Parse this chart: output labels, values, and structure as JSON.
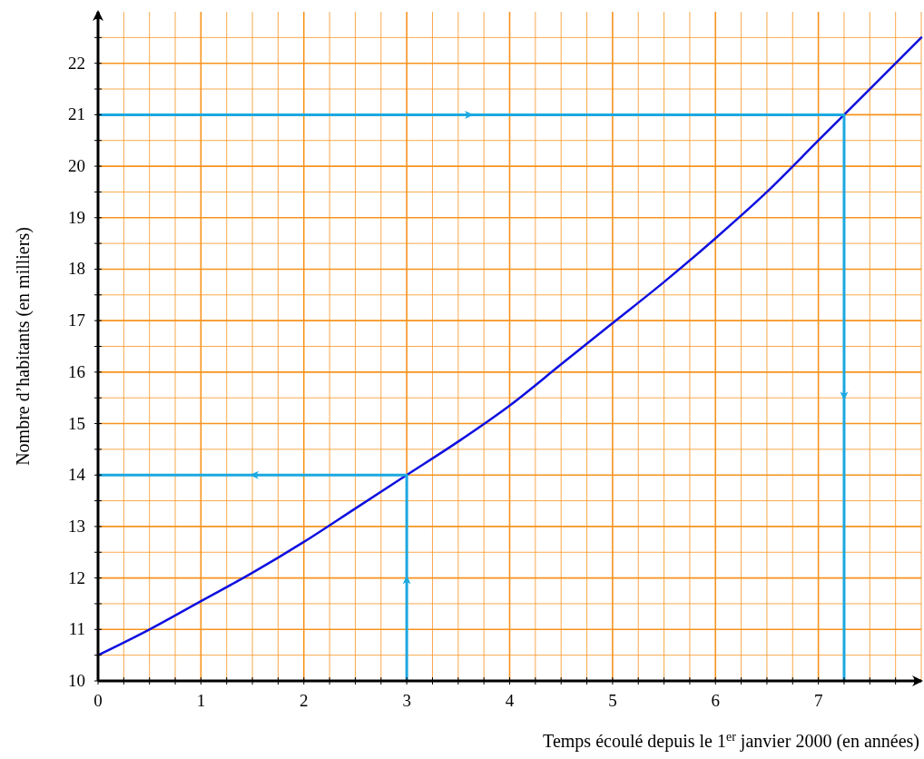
{
  "chart_data": {
    "type": "line",
    "xlabel": "Temps écoulé depuis le 1$^{er}$ janvier 2000 (en années)",
    "ylabel": "Nombre d’habitants (en milliers)",
    "xlim": [
      0,
      8
    ],
    "ylim": [
      10,
      23
    ],
    "xticks": [
      0,
      {
        "value": 0.25,
        "label": null
      },
      {
        "value": 0.5,
        "label": null
      },
      {
        "value": 0.75,
        "label": null
      },
      1,
      {
        "value": 1.25,
        "label": null
      },
      {
        "value": 1.5,
        "label": null
      },
      {
        "value": 1.75,
        "label": null
      },
      2,
      {
        "value": 2.25,
        "label": null
      },
      {
        "value": 2.5,
        "label": null
      },
      {
        "value": 2.75,
        "label": null
      },
      3,
      {
        "value": 3.25,
        "label": null
      },
      {
        "value": 3.5,
        "label": null
      },
      {
        "value": 3.75,
        "label": null
      },
      4,
      {
        "value": 4.25,
        "label": null
      },
      {
        "value": 4.5,
        "label": null
      },
      {
        "value": 4.75,
        "label": null
      },
      5,
      {
        "value": 5.25,
        "label": null
      },
      {
        "value": 5.5,
        "label": null
      },
      {
        "value": 5.75,
        "label": null
      },
      6,
      {
        "value": 6.25,
        "label": null
      },
      {
        "value": 6.5,
        "label": null
      },
      {
        "value": 6.75,
        "label": null
      },
      7,
      {
        "value": 7.25,
        "label": null
      },
      {
        "value": 7.5,
        "label": null
      },
      {
        "value": 7.75,
        "label": null
      }
    ],
    "yticks": [
      10,
      {
        "value": 10.5,
        "label": null
      },
      11,
      {
        "value": 11.5,
        "label": null
      },
      12,
      {
        "value": 12.5,
        "label": null
      },
      13,
      {
        "value": 13.5,
        "label": null
      },
      14,
      {
        "value": 14.5,
        "label": null
      },
      15,
      {
        "value": 15.5,
        "label": null
      },
      16,
      {
        "value": 16.5,
        "label": null
      },
      17,
      {
        "value": 17.5,
        "label": null
      },
      18,
      {
        "value": 18.5,
        "label": null
      },
      19,
      {
        "value": 19.5,
        "label": null
      },
      20,
      {
        "value": 20.5,
        "label": null
      },
      21,
      {
        "value": 21.5,
        "label": null
      },
      22,
      {
        "value": 22.5,
        "label": null
      }
    ],
    "grid": true,
    "series": [
      {
        "color": "#1010e0",
        "x": [
          0,
          0.5,
          1,
          1.5,
          2,
          2.5,
          3,
          3.5,
          4,
          4.5,
          5,
          5.5,
          6,
          6.5,
          7,
          7.25,
          7.5,
          8
        ],
        "values": [
          10.5,
          11.0,
          11.55,
          12.1,
          12.7,
          13.35,
          14.0,
          14.65,
          15.35,
          16.15,
          16.95,
          17.75,
          18.6,
          19.5,
          20.5,
          21.0,
          21.5,
          22.5
        ]
      },
      {
        "color": "#1ca8e0",
        "x": [
          3,
          3,
          0
        ],
        "values": [
          10,
          14,
          14
        ]
      },
      {
        "color": "#1ca8e0",
        "x": [
          0,
          7.25,
          7.25
        ],
        "values": [
          21,
          21,
          10
        ]
      }
    ]
  }
}
